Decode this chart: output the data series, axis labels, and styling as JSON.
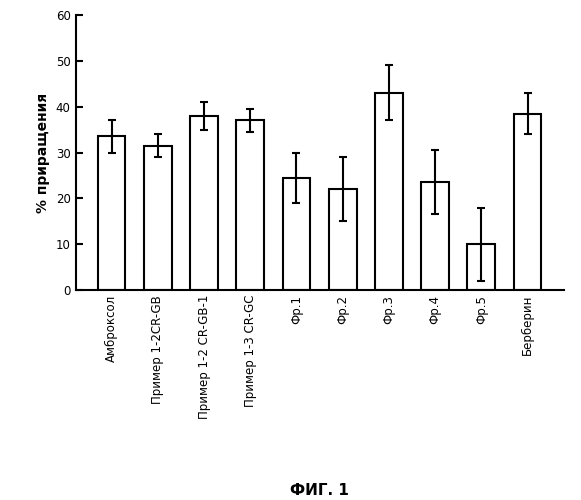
{
  "categories": [
    "Амброксол",
    "Пример 1-2CR-GB",
    "Пример 1-2 CR-GB-1",
    "Пример 1-3 CR-GC",
    "Фр.1",
    "Фр.2",
    "Фр.3",
    "Фр.4",
    "Фр.5",
    "Берберин"
  ],
  "values": [
    33.5,
    31.5,
    38.0,
    37.0,
    24.5,
    22.0,
    43.0,
    23.5,
    10.0,
    38.5
  ],
  "errors": [
    3.5,
    2.5,
    3.0,
    2.5,
    5.5,
    7.0,
    6.0,
    7.0,
    8.0,
    4.5
  ],
  "bar_color": "#ffffff",
  "bar_edgecolor": "#000000",
  "ylabel": "% приращения",
  "ylim": [
    0,
    60
  ],
  "yticks": [
    0,
    10,
    20,
    30,
    40,
    50,
    60
  ],
  "figure_title": "ФИГ. 1",
  "title_fontsize": 11,
  "tick_fontsize": 8.5,
  "ylabel_fontsize": 10,
  "bar_width": 0.6,
  "capsize": 3,
  "linewidth": 1.5,
  "background_color": "#ffffff"
}
